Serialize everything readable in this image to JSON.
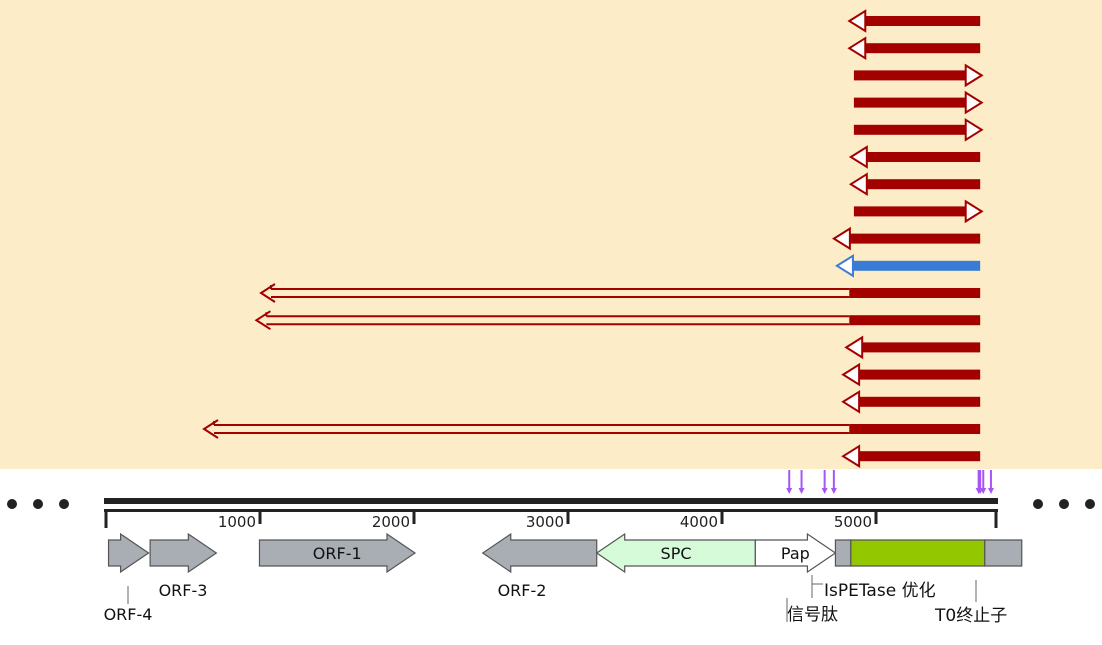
{
  "colors": {
    "alignment_panel": "#fdecc8",
    "read_primary": "#a30000",
    "read_selected": "#3a7bd5",
    "mismatch_mark": "#a855f7",
    "axis": "#222222",
    "orf_gray": "#a8aeb4",
    "spc_green": "#d6fbd9",
    "pap_white": "#ffffff",
    "ispetase_green": "#93c700"
  },
  "icons": {
    "left_more": "ellipsis-icon",
    "right_more": "ellipsis-icon"
  },
  "ruler": {
    "range": [
      0,
      5800
    ],
    "ticks": [
      {
        "value": 1000,
        "label": "1000"
      },
      {
        "value": 2000,
        "label": "2000"
      },
      {
        "value": 3000,
        "label": "3000"
      },
      {
        "value": 4000,
        "label": "4000"
      },
      {
        "value": 5000,
        "label": "5000"
      }
    ]
  },
  "reads": [
    {
      "strand": "-",
      "start": 4820,
      "end": 5670,
      "status": "normal"
    },
    {
      "strand": "-",
      "start": 4820,
      "end": 5670,
      "status": "normal"
    },
    {
      "strand": "+",
      "start": 4850,
      "end": 5680,
      "status": "normal"
    },
    {
      "strand": "+",
      "start": 4850,
      "end": 5680,
      "status": "normal"
    },
    {
      "strand": "+",
      "start": 4850,
      "end": 5680,
      "status": "normal"
    },
    {
      "strand": "-",
      "start": 4830,
      "end": 5670,
      "status": "normal"
    },
    {
      "strand": "-",
      "start": 4830,
      "end": 5670,
      "status": "normal"
    },
    {
      "strand": "+",
      "start": 4850,
      "end": 5680,
      "status": "normal"
    },
    {
      "strand": "-",
      "start": 4720,
      "end": 5670,
      "status": "normal"
    },
    {
      "strand": "-",
      "start": 4740,
      "end": 5670,
      "status": "selected"
    },
    {
      "strand": "-",
      "start": 1000,
      "end": 5670,
      "status": "split"
    },
    {
      "strand": "-",
      "start": 970,
      "end": 5670,
      "status": "split"
    },
    {
      "strand": "-",
      "start": 4800,
      "end": 5670,
      "status": "normal"
    },
    {
      "strand": "-",
      "start": 4780,
      "end": 5670,
      "status": "normal"
    },
    {
      "strand": "-",
      "start": 4780,
      "end": 5670,
      "status": "normal"
    },
    {
      "strand": "-",
      "start": 630,
      "end": 5670,
      "status": "split"
    },
    {
      "strand": "-",
      "start": 4780,
      "end": 5670,
      "status": "normal"
    }
  ],
  "mismatch_positions": [
    4430,
    4510,
    4660,
    4720,
    5660,
    5670,
    5690,
    5740
  ],
  "features": [
    {
      "id": "orf-4",
      "label": "ORF-4",
      "start": 10,
      "end": 270,
      "strand": "+",
      "color": "#a8aeb4",
      "label_pos": "below"
    },
    {
      "id": "orf-3",
      "label": "ORF-3",
      "start": 280,
      "end": 710,
      "strand": "+",
      "color": "#a8aeb4",
      "label_pos": "below"
    },
    {
      "id": "orf-1",
      "label": "ORF-1",
      "start": 990,
      "end": 2000,
      "strand": "+",
      "color": "#a8aeb4",
      "label_pos": "inside"
    },
    {
      "id": "orf-2",
      "label": "ORF-2",
      "start": 2440,
      "end": 3180,
      "strand": "-",
      "color": "#a8aeb4",
      "label_pos": "below"
    },
    {
      "id": "spc",
      "label": "SPC",
      "start": 3180,
      "end": 4210,
      "strand": "-",
      "color": "#d6fbd9",
      "label_pos": "inside"
    },
    {
      "id": "pap",
      "label": "Pap",
      "start": 4210,
      "end": 4730,
      "strand": "+",
      "color": "#ffffff",
      "label_pos": "inside"
    },
    {
      "id": "signal",
      "label": "",
      "start": 4730,
      "end": 4830,
      "strand": "",
      "color": "#a8aeb4",
      "label_pos": "none"
    },
    {
      "id": "ispetase",
      "label": "",
      "start": 4830,
      "end": 5700,
      "strand": "",
      "color": "#93c700",
      "label_pos": "none"
    },
    {
      "id": "t0",
      "label": "",
      "start": 5700,
      "end": 5940,
      "strand": "",
      "color": "#a8aeb4",
      "label_pos": "none"
    }
  ],
  "annotations": {
    "signal_peptide": "信号肽",
    "ispetase_opt": "IsPETase 优化",
    "t0_terminator": "T0终止子"
  }
}
